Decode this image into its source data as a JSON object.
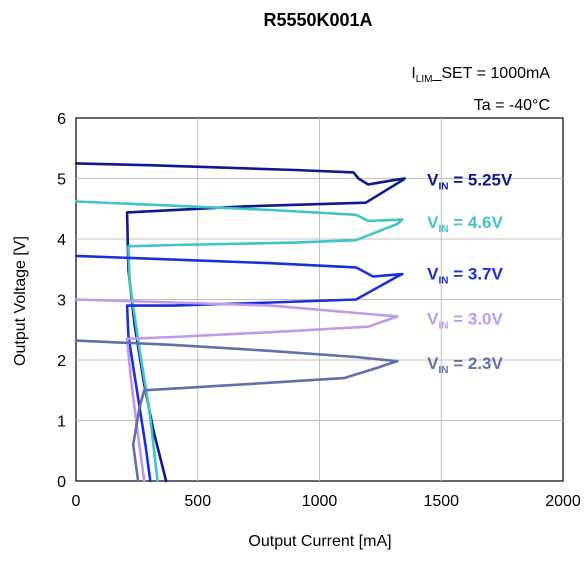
{
  "chart_data": {
    "type": "line",
    "title": "R5550K001A",
    "notes": [
      "I_LIM_SET = 1000mA",
      "Ta = -40°C"
    ],
    "note_lines": [
      {
        "main": "I",
        "sub": "LIM",
        "rest": "_SET = 1000mA"
      },
      {
        "main": "Ta = -40°C",
        "sub": "",
        "rest": ""
      }
    ],
    "xlabel": "Output Current [mA]",
    "ylabel": "Output Voltage [V]",
    "xlim": [
      0,
      2000
    ],
    "ylim": [
      0,
      6
    ],
    "xticks": [
      0,
      500,
      1000,
      1500,
      2000
    ],
    "yticks": [
      0,
      1,
      2,
      3,
      4,
      5,
      6
    ],
    "grid": true,
    "series": [
      {
        "name": "VIN = 5.25V",
        "label_main": "V",
        "label_sub": "IN",
        "label_rest": " = 5.25V",
        "label_pos": [
          1360,
          5.0
        ],
        "color": "#0d1a8c",
        "points": [
          [
            0,
            5.25
          ],
          [
            300,
            5.22
          ],
          [
            600,
            5.18
          ],
          [
            900,
            5.14
          ],
          [
            1140,
            5.1
          ],
          [
            1160,
            5.0
          ],
          [
            1200,
            4.9
          ],
          [
            1300,
            4.97
          ],
          [
            1350,
            5.0
          ],
          [
            1340,
            4.97
          ],
          [
            1190,
            4.6
          ],
          [
            700,
            4.54
          ],
          [
            500,
            4.5
          ],
          [
            210,
            4.44
          ],
          [
            215,
            3.5
          ],
          [
            240,
            2.6
          ],
          [
            280,
            1.6
          ],
          [
            320,
            0.8
          ],
          [
            370,
            0.0
          ]
        ]
      },
      {
        "name": "VIN = 4.6V",
        "label_main": "V",
        "label_sub": "IN",
        "label_rest": " = 4.6V",
        "label_pos": [
          1360,
          4.3
        ],
        "color": "#40c4c4",
        "points": [
          [
            0,
            4.62
          ],
          [
            400,
            4.55
          ],
          [
            800,
            4.48
          ],
          [
            1150,
            4.4
          ],
          [
            1200,
            4.3
          ],
          [
            1340,
            4.32
          ],
          [
            1320,
            4.25
          ],
          [
            1150,
            3.98
          ],
          [
            900,
            3.94
          ],
          [
            400,
            3.9
          ],
          [
            215,
            3.88
          ],
          [
            220,
            3.3
          ],
          [
            260,
            2.2
          ],
          [
            300,
            1.2
          ],
          [
            335,
            0.0
          ]
        ]
      },
      {
        "name": "VIN = 3.7V",
        "label_main": "V",
        "label_sub": "IN",
        "label_rest": " = 3.7V",
        "label_pos": [
          1360,
          3.45
        ],
        "color": "#1a2fd6",
        "points": [
          [
            0,
            3.72
          ],
          [
            400,
            3.66
          ],
          [
            800,
            3.6
          ],
          [
            1150,
            3.53
          ],
          [
            1220,
            3.38
          ],
          [
            1340,
            3.42
          ],
          [
            1320,
            3.38
          ],
          [
            1150,
            3.0
          ],
          [
            800,
            2.95
          ],
          [
            400,
            2.9
          ],
          [
            210,
            2.9
          ],
          [
            215,
            2.4
          ],
          [
            250,
            1.5
          ],
          [
            285,
            0.6
          ],
          [
            305,
            0.0
          ]
        ]
      },
      {
        "name": "VIN = 3.0V",
        "label_main": "V",
        "label_sub": "IN",
        "label_rest": " = 3.0V",
        "label_pos": [
          1360,
          2.7
        ],
        "color": "#c09ae8",
        "points": [
          [
            0,
            3.0
          ],
          [
            400,
            2.95
          ],
          [
            800,
            2.9
          ],
          [
            1200,
            2.76
          ],
          [
            1320,
            2.72
          ],
          [
            1200,
            2.55
          ],
          [
            800,
            2.46
          ],
          [
            400,
            2.38
          ],
          [
            210,
            2.35
          ],
          [
            225,
            1.7
          ],
          [
            250,
            0.9
          ],
          [
            280,
            0.0
          ]
        ]
      },
      {
        "name": "VIN = 2.3V",
        "label_main": "V",
        "label_sub": "IN",
        "label_rest": " = 2.3V",
        "label_pos": [
          1360,
          1.97
        ],
        "color": "#6070a8",
        "points": [
          [
            0,
            2.32
          ],
          [
            400,
            2.25
          ],
          [
            800,
            2.15
          ],
          [
            1150,
            2.05
          ],
          [
            1320,
            1.98
          ],
          [
            1220,
            1.85
          ],
          [
            1100,
            1.7
          ],
          [
            700,
            1.6
          ],
          [
            280,
            1.5
          ],
          [
            260,
            1.2
          ],
          [
            235,
            0.6
          ],
          [
            255,
            0.0
          ]
        ]
      }
    ]
  }
}
